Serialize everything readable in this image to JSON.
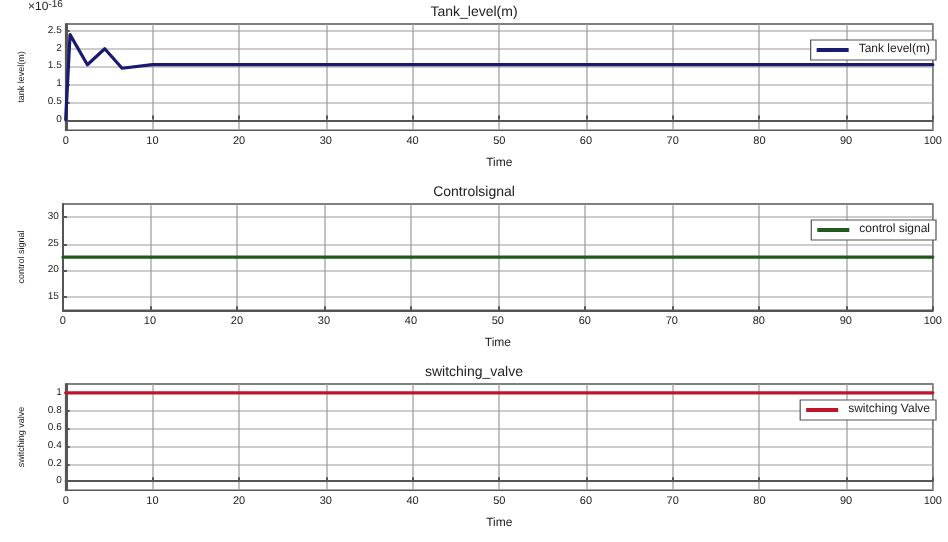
{
  "chart_data": [
    {
      "type": "line",
      "title": "Tank_level(m)",
      "xlabel": "Time",
      "ylabel": "tank level(m)",
      "annotations": [
        "×10$^{-16}$"
      ],
      "x": [
        0,
        0.5,
        2.5,
        4.5,
        6.5,
        10,
        100
      ],
      "series": [
        {
          "name": "Tank level(m)",
          "color": "#1a1a6e",
          "values": [
            0,
            2.4,
            1.55,
            2.0,
            1.45,
            1.55,
            1.55
          ]
        }
      ],
      "xlim": [
        0,
        100
      ],
      "xticks": [
        0,
        10,
        20,
        30,
        40,
        50,
        60,
        70,
        80,
        90,
        100
      ],
      "ylim": [
        -0.3,
        2.7
      ],
      "yticks": [
        0,
        0.5,
        1,
        1.5,
        2,
        2.5
      ],
      "grid": true,
      "legend": "top right",
      "marker": "none",
      "line_style": "solid"
    },
    {
      "type": "line",
      "title": "Controlsignal",
      "xlabel": "Time",
      "ylabel": "control signal",
      "x": [
        0,
        100
      ],
      "series": [
        {
          "name": "control signal",
          "color": "#1e5a1e",
          "values": [
            22.5,
            22.5
          ]
        }
      ],
      "xlim": [
        0,
        100
      ],
      "xticks": [
        0,
        10,
        20,
        30,
        40,
        50,
        60,
        70,
        80,
        90,
        100
      ],
      "ylim": [
        12.5,
        32.5
      ],
      "yticks": [
        15,
        20,
        25,
        30
      ],
      "grid": true,
      "legend": "top right",
      "marker": "none",
      "line_style": "solid"
    },
    {
      "type": "line",
      "title": "switching_valve",
      "xlabel": "Time",
      "ylabel": "switching valve",
      "x": [
        0,
        100
      ],
      "series": [
        {
          "name": "switching Valve",
          "color": "#c0142a",
          "values": [
            1,
            1
          ]
        }
      ],
      "xlim": [
        0,
        100
      ],
      "xticks": [
        0,
        10,
        20,
        30,
        40,
        50,
        60,
        70,
        80,
        90,
        100
      ],
      "ylim": [
        -0.1,
        1.1
      ],
      "yticks": [
        0,
        0.2,
        0.4,
        0.6,
        0.8,
        1
      ],
      "grid": true,
      "legend": "top right",
      "marker": "none",
      "line_style": "solid"
    }
  ]
}
